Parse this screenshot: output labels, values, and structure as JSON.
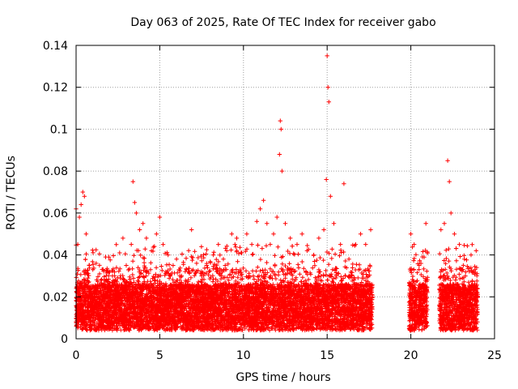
{
  "chart_data": {
    "type": "scatter",
    "title": "Day 063 of 2025, Rate Of TEC Index for receiver gabo",
    "xlabel": "GPS time / hours",
    "ylabel": "ROTI / TECUs",
    "xlim": [
      0,
      25
    ],
    "ylim": [
      0,
      0.14
    ],
    "xticks": [
      0,
      5,
      10,
      15,
      20,
      25
    ],
    "yticks": [
      0,
      0.02,
      0.04,
      0.06,
      0.08,
      0.1,
      0.12,
      0.14
    ],
    "xtick_labels": [
      "0",
      "5",
      "10",
      "15",
      "20",
      "25"
    ],
    "ytick_labels": [
      "0",
      "0.02",
      "0.04",
      "0.06",
      "0.08",
      "0.1",
      "0.12",
      "0.14"
    ],
    "grid": true,
    "marker": "+",
    "color": "#ff0000",
    "data_coverage": {
      "segments": [
        [
          0,
          17.7
        ],
        [
          19.9,
          21.0
        ],
        [
          21.7,
          24.0
        ]
      ]
    },
    "series": [
      {
        "values": [
          [
            0.0,
            0.062
          ],
          [
            0.1,
            0.045
          ],
          [
            0.2,
            0.058
          ],
          [
            0.3,
            0.064
          ],
          [
            0.4,
            0.07
          ],
          [
            0.5,
            0.068
          ],
          [
            0.6,
            0.05
          ],
          [
            0.8,
            0.035
          ],
          [
            1.0,
            0.033
          ],
          [
            1.2,
            0.036
          ],
          [
            1.5,
            0.028
          ],
          [
            1.8,
            0.03
          ],
          [
            2.0,
            0.025
          ],
          [
            2.3,
            0.03
          ],
          [
            2.6,
            0.041
          ],
          [
            2.8,
            0.048
          ],
          [
            3.0,
            0.035
          ],
          [
            3.3,
            0.045
          ],
          [
            3.4,
            0.075
          ],
          [
            3.5,
            0.065
          ],
          [
            3.6,
            0.06
          ],
          [
            3.8,
            0.052
          ],
          [
            4.0,
            0.055
          ],
          [
            4.2,
            0.048
          ],
          [
            4.5,
            0.042
          ],
          [
            4.8,
            0.05
          ],
          [
            5.0,
            0.058
          ],
          [
            5.2,
            0.045
          ],
          [
            5.5,
            0.04
          ],
          [
            5.8,
            0.035
          ],
          [
            6.0,
            0.038
          ],
          [
            6.3,
            0.03
          ],
          [
            6.6,
            0.033
          ],
          [
            6.9,
            0.052
          ],
          [
            7.2,
            0.036
          ],
          [
            7.5,
            0.03
          ],
          [
            7.8,
            0.035
          ],
          [
            8.2,
            0.04
          ],
          [
            8.5,
            0.045
          ],
          [
            8.8,
            0.038
          ],
          [
            9.0,
            0.042
          ],
          [
            9.3,
            0.05
          ],
          [
            9.6,
            0.048
          ],
          [
            9.9,
            0.041
          ],
          [
            10.2,
            0.05
          ],
          [
            10.5,
            0.045
          ],
          [
            10.8,
            0.056
          ],
          [
            11.0,
            0.062
          ],
          [
            11.2,
            0.066
          ],
          [
            11.4,
            0.055
          ],
          [
            11.6,
            0.045
          ],
          [
            11.8,
            0.05
          ],
          [
            12.0,
            0.058
          ],
          [
            12.15,
            0.088
          ],
          [
            12.2,
            0.104
          ],
          [
            12.25,
            0.1
          ],
          [
            12.3,
            0.08
          ],
          [
            12.5,
            0.055
          ],
          [
            12.8,
            0.048
          ],
          [
            13.2,
            0.045
          ],
          [
            13.5,
            0.05
          ],
          [
            13.8,
            0.042
          ],
          [
            14.2,
            0.04
          ],
          [
            14.5,
            0.048
          ],
          [
            14.8,
            0.052
          ],
          [
            14.95,
            0.076
          ],
          [
            15.0,
            0.135
          ],
          [
            15.05,
            0.12
          ],
          [
            15.1,
            0.113
          ],
          [
            15.2,
            0.068
          ],
          [
            15.4,
            0.055
          ],
          [
            15.8,
            0.045
          ],
          [
            16.0,
            0.074
          ],
          [
            16.3,
            0.038
          ],
          [
            16.7,
            0.045
          ],
          [
            17.0,
            0.05
          ],
          [
            17.3,
            0.045
          ],
          [
            17.6,
            0.052
          ],
          [
            20.0,
            0.05
          ],
          [
            20.2,
            0.045
          ],
          [
            20.5,
            0.035
          ],
          [
            20.9,
            0.055
          ],
          [
            21.8,
            0.052
          ],
          [
            22.0,
            0.055
          ],
          [
            22.2,
            0.085
          ],
          [
            22.3,
            0.075
          ],
          [
            22.4,
            0.06
          ],
          [
            22.6,
            0.05
          ],
          [
            22.9,
            0.045
          ],
          [
            23.2,
            0.038
          ],
          [
            23.6,
            0.04
          ],
          [
            23.9,
            0.042
          ]
        ]
      }
    ]
  }
}
